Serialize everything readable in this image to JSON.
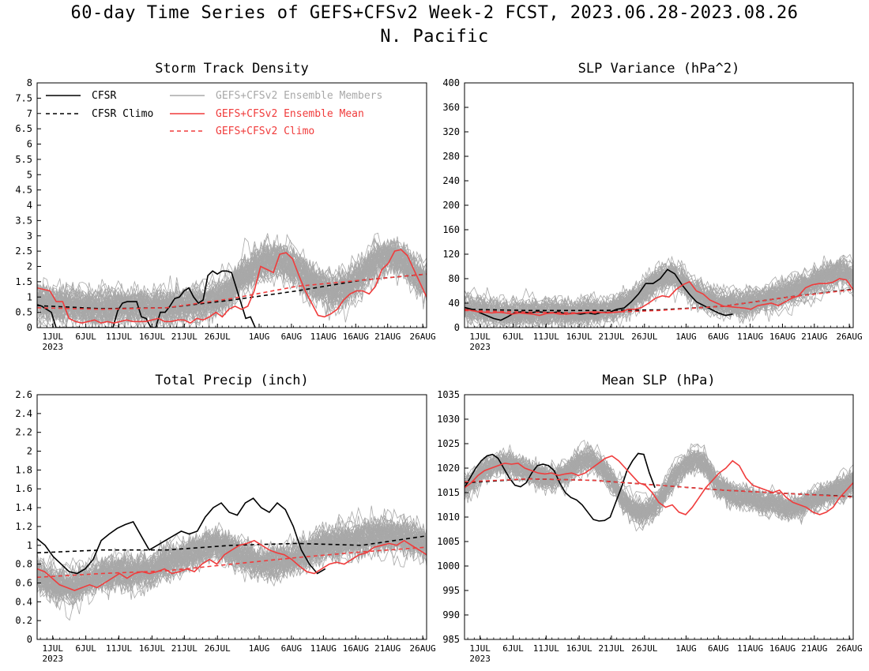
{
  "figure": {
    "title": "60-day Time Series of GEFS+CFSv2 Week-2 FCST, 2023.06.28-2023.08.26",
    "subtitle": "N. Pacific"
  },
  "legend": {
    "cfsr": "CFSR",
    "cfsr_climo": "CFSR Climo",
    "members": "GEFS+CFSv2 Ensemble Members",
    "mean": "GEFS+CFSv2 Ensemble Mean",
    "climo": "GEFS+CFSv2 Climo"
  },
  "colors": {
    "cfsr": "#000000",
    "members": "#a8a8a8",
    "ensemble": "#f03c3c"
  },
  "x_ticks": [
    "1JUL",
    "6JUL",
    "11JUL",
    "16JUL",
    "21JUL",
    "26JUL",
    "1AUG",
    "6AUG",
    "11AUG",
    "16AUG",
    "21AUG",
    "26AUG"
  ],
  "x_year": "2023",
  "chart_data": [
    {
      "type": "line",
      "title": "Storm Track Density",
      "ylim": [
        0,
        8
      ],
      "yticks": [
        "0",
        "0.5",
        "1",
        "1.5",
        "2",
        "2.5",
        "3",
        "3.5",
        "4",
        "4.5",
        "5",
        "5.5",
        "6",
        "6.5",
        "7",
        "7.5",
        "8"
      ],
      "members": {
        "count": 60,
        "base": [
          0.9,
          0.8,
          0.8,
          0.75,
          0.7,
          0.65,
          0.65,
          0.7,
          0.7,
          0.7,
          0.7,
          0.7,
          0.7,
          0.75,
          0.8,
          0.9,
          1.0,
          1.3,
          1.7,
          2.0,
          2.2,
          2.2,
          2.1,
          1.8,
          1.5,
          1.3,
          1.2,
          1.3,
          1.6,
          2.0,
          2.3,
          2.4,
          2.2,
          1.8,
          1.5
        ],
        "spread": 1.1
      },
      "series": [
        {
          "name": "CFSR",
          "values": [
            0.75,
            0.7,
            0.6,
            0.5,
            0.0,
            0.0,
            0.0,
            0.0,
            0.0,
            0.0,
            0.0,
            0.0,
            0.0,
            0.0,
            0.0,
            0.0,
            0.0,
            0.55,
            0.8,
            0.85,
            0.85,
            0.85,
            0.35,
            0.3,
            0.0,
            0.0,
            0.5,
            0.5,
            0.7,
            0.95,
            1.0,
            1.2,
            1.3,
            1.0,
            0.8,
            0.9,
            1.7,
            1.85,
            1.75,
            1.85,
            1.85,
            1.8,
            1.3,
            0.8,
            0.3,
            0.35,
            0.0
          ]
        },
        {
          "name": "CFSR Climo",
          "values": [
            0.72,
            0.62,
            0.65,
            0.9,
            1.2,
            1.55,
            1.75
          ]
        },
        {
          "name": "GEFS+CFSv2 Ensemble Mean",
          "values": [
            1.3,
            1.25,
            1.2,
            0.85,
            0.85,
            0.3,
            0.2,
            0.15,
            0.2,
            0.25,
            0.15,
            0.2,
            0.15,
            0.2,
            0.25,
            0.2,
            0.2,
            0.2,
            0.25,
            0.3,
            0.2,
            0.2,
            0.25,
            0.25,
            0.15,
            0.3,
            0.25,
            0.35,
            0.5,
            0.35,
            0.6,
            0.7,
            0.6,
            0.7,
            1.2,
            2.0,
            1.9,
            1.8,
            2.4,
            2.45,
            2.25,
            1.7,
            1.2,
            0.8,
            0.4,
            0.35,
            0.45,
            0.6,
            0.9,
            1.1,
            1.2,
            1.2,
            1.1,
            1.35,
            1.9,
            2.1,
            2.5,
            2.55,
            2.35,
            1.9,
            1.45,
            1.0
          ]
        },
        {
          "name": "GEFS+CFSv2 Climo",
          "values": [
            0.65,
            0.6,
            0.65,
            0.95,
            1.35,
            1.55,
            1.75
          ]
        }
      ]
    },
    {
      "type": "line",
      "title": "SLP Variance (hPa^2)",
      "ylim": [
        0,
        400
      ],
      "yticks": [
        "0",
        "40",
        "80",
        "120",
        "160",
        "200",
        "240",
        "280",
        "320",
        "360",
        "400"
      ],
      "members": {
        "count": 60,
        "base": [
          32,
          28,
          25,
          22,
          22,
          24,
          24,
          25,
          25,
          24,
          24,
          26,
          26,
          30,
          38,
          48,
          62,
          78,
          85,
          76,
          58,
          45,
          40,
          38,
          38,
          40,
          44,
          50,
          56,
          62,
          70,
          78,
          85,
          90,
          82
        ],
        "spread": 40
      },
      "series": [
        {
          "name": "CFSR",
          "values": [
            33,
            30,
            25,
            20,
            15,
            12,
            18,
            25,
            26,
            24,
            26,
            25,
            24,
            26,
            22,
            24,
            22,
            24,
            22,
            25,
            25,
            30,
            32,
            42,
            55,
            72,
            72,
            80,
            95,
            88,
            70,
            55,
            42,
            36,
            30,
            24,
            20,
            22
          ]
        },
        {
          "name": "CFSR Climo",
          "values": [
            30,
            28,
            28,
            29,
            35,
            50,
            63
          ]
        },
        {
          "name": "GEFS+CFSv2 Ensemble Mean",
          "values": [
            30,
            28,
            26,
            25,
            24,
            25,
            24,
            22,
            24,
            23,
            22,
            20,
            23,
            24,
            22,
            22,
            23,
            24,
            25,
            26,
            25,
            24,
            25,
            26,
            30,
            30,
            33,
            40,
            48,
            52,
            50,
            62,
            70,
            75,
            60,
            55,
            45,
            40,
            35,
            34,
            33,
            32,
            30,
            36,
            38,
            40,
            36,
            42,
            48,
            52,
            65,
            70,
            72,
            72,
            74,
            80,
            78,
            62
          ]
        },
        {
          "name": "GEFS+CFSv2 Climo",
          "values": [
            28,
            25,
            24,
            28,
            35,
            50,
            62
          ]
        }
      ]
    },
    {
      "type": "line",
      "title": "Total Precip (inch)",
      "ylim": [
        0,
        2.6
      ],
      "yticks": [
        "0",
        "0.2",
        "0.4",
        "0.6",
        "0.8",
        "1",
        "1.2",
        "1.4",
        "1.6",
        "1.8",
        "2",
        "2.2",
        "2.4",
        "2.6"
      ],
      "members": {
        "count": 60,
        "base": [
          0.7,
          0.6,
          0.55,
          0.55,
          0.6,
          0.65,
          0.7,
          0.72,
          0.7,
          0.72,
          0.75,
          0.8,
          0.85,
          0.9,
          0.95,
          1.0,
          1.0,
          0.95,
          0.88,
          0.82,
          0.8,
          0.82,
          0.85,
          0.9,
          0.95,
          1.0,
          1.0,
          1.05,
          1.05,
          1.1,
          1.1,
          1.1,
          1.1,
          1.05,
          1.0
        ],
        "spread": 0.35
      },
      "series": [
        {
          "name": "CFSR",
          "values": [
            1.07,
            1.0,
            0.88,
            0.8,
            0.72,
            0.7,
            0.75,
            0.85,
            1.05,
            1.12,
            1.18,
            1.22,
            1.25,
            1.1,
            0.95,
            1.0,
            1.05,
            1.1,
            1.15,
            1.12,
            1.15,
            1.3,
            1.4,
            1.45,
            1.35,
            1.32,
            1.45,
            1.5,
            1.4,
            1.35,
            1.45,
            1.38,
            1.2,
            0.95,
            0.8,
            0.7,
            0.75
          ]
        },
        {
          "name": "CFSR Climo",
          "values": [
            0.92,
            0.95,
            0.95,
            1.0,
            1.02,
            1.0,
            1.1
          ]
        },
        {
          "name": "GEFS+CFSv2 Ensemble Mean",
          "values": [
            0.75,
            0.72,
            0.65,
            0.58,
            0.55,
            0.52,
            0.55,
            0.58,
            0.55,
            0.6,
            0.65,
            0.7,
            0.65,
            0.7,
            0.72,
            0.7,
            0.72,
            0.75,
            0.7,
            0.72,
            0.75,
            0.72,
            0.8,
            0.85,
            0.8,
            0.9,
            0.95,
            1.0,
            1.02,
            1.05,
            1.0,
            0.95,
            0.92,
            0.9,
            0.85,
            0.78,
            0.72,
            0.7,
            0.75,
            0.8,
            0.82,
            0.8,
            0.85,
            0.9,
            0.92,
            0.98,
            1.0,
            1.02,
            1.0,
            1.05,
            1.0,
            0.95,
            0.9
          ]
        },
        {
          "name": "GEFS+CFSv2 Climo",
          "values": [
            0.66,
            0.7,
            0.73,
            0.8,
            0.87,
            0.93,
            0.98
          ]
        }
      ]
    },
    {
      "type": "line",
      "title": "Mean SLP (hPa)",
      "ylim": [
        985,
        1035
      ],
      "yticks": [
        "985",
        "990",
        "995",
        "1000",
        "1005",
        "1010",
        "1015",
        "1020",
        "1025",
        "1030",
        "1035"
      ],
      "members": {
        "count": 60,
        "base": [
          1016,
          1018,
          1020,
          1021,
          1021,
          1020,
          1019,
          1018,
          1018,
          1019,
          1021,
          1022,
          1020,
          1017,
          1013,
          1011,
          1011,
          1013,
          1017,
          1020,
          1022,
          1021,
          1017,
          1015,
          1014,
          1014,
          1013,
          1013,
          1012,
          1012,
          1013,
          1014,
          1015,
          1016,
          1017
        ],
        "spread": 4.5
      },
      "series": [
        {
          "name": "CFSR",
          "values": [
            1016,
            1018,
            1020,
            1021.5,
            1022.5,
            1022.8,
            1022,
            1020,
            1018,
            1016.5,
            1016.2,
            1017,
            1019,
            1020.5,
            1020.8,
            1020.5,
            1019.5,
            1017,
            1015,
            1014,
            1013.5,
            1012.5,
            1011,
            1009.5,
            1009.2,
            1009.3,
            1010,
            1013,
            1016,
            1019.5,
            1021.5,
            1023,
            1022.8,
            1019,
            1016
          ]
        },
        {
          "name": "CFSR Climo",
          "values": [
            1017,
            1017.8,
            1017.5,
            1016.5,
            1015.5,
            1014.8,
            1014.2
          ]
        },
        {
          "name": "GEFS+CFSv2 Ensemble Mean",
          "values": [
            1016,
            1017,
            1018.5,
            1019.5,
            1020,
            1020.5,
            1021,
            1020.8,
            1021,
            1020,
            1019.5,
            1019,
            1018.8,
            1019,
            1018.5,
            1018.8,
            1019,
            1018.5,
            1019,
            1020,
            1021,
            1022,
            1022.5,
            1021.5,
            1020,
            1018.5,
            1017,
            1016.5,
            1015,
            1013,
            1012,
            1012.5,
            1011,
            1010.5,
            1012,
            1014,
            1016,
            1017.5,
            1019,
            1020,
            1021.5,
            1020.5,
            1018,
            1016.5,
            1016,
            1015.5,
            1015,
            1015.5,
            1014,
            1013,
            1012.5,
            1012,
            1011,
            1010.5,
            1011,
            1012,
            1014,
            1015.5,
            1017
          ]
        },
        {
          "name": "GEFS+CFSv2 Climo",
          "values": [
            1017.2,
            1017.8,
            1017.5,
            1016.5,
            1015.5,
            1014.8,
            1014.1
          ]
        }
      ]
    }
  ]
}
